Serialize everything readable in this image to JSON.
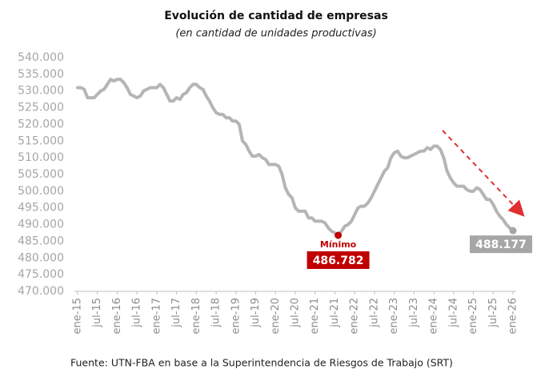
{
  "chart_data": {
    "type": "line",
    "title": "Evolución de cantidad de empresas",
    "subtitle": "(en cantidad de unidades productivas)",
    "source": "Fuente: UTN-FBA en base a la Superintendencia de Riesgos de Trabajo (SRT)",
    "annotation": "Mínimo",
    "color": "#b5b5b5",
    "highlight_color": "#c00000",
    "categories": [
      "ene-15",
      null,
      null,
      null,
      null,
      null,
      "jul-15",
      null,
      null,
      null,
      null,
      null,
      "ene-16",
      null,
      null,
      null,
      null,
      null,
      "jul-16",
      null,
      null,
      null,
      null,
      null,
      "ene-17",
      null,
      null,
      null,
      null,
      null,
      "jul-17",
      null,
      null,
      null,
      null,
      null,
      "ene-18",
      null,
      null,
      null,
      null,
      null,
      "jul-18",
      null,
      null,
      null,
      null,
      null,
      "ene-19",
      null,
      null,
      null,
      null,
      null,
      "jul-19",
      null,
      null,
      null,
      null,
      null,
      "ene-20",
      null,
      null,
      null,
      null,
      null,
      "jul-20",
      null,
      null,
      null,
      null,
      null,
      "ene-21",
      null,
      null,
      null,
      null,
      null,
      "jul-21",
      null,
      null,
      null,
      null,
      null,
      "ene-22",
      null,
      null,
      null,
      null,
      null,
      "jul-22",
      null,
      null,
      null,
      null,
      null,
      "ene-23",
      null,
      null,
      null,
      null,
      null,
      "jul-23",
      null,
      null,
      null,
      null,
      null,
      "ene-24",
      null,
      null,
      null,
      null,
      null,
      "jul-24",
      null,
      null,
      null,
      null,
      null,
      "ene-25",
      null,
      null,
      null,
      null,
      null,
      "jul-25",
      null,
      null,
      null,
      null,
      null,
      "ene-26"
    ],
    "values": [
      531000,
      531000,
      530500,
      528000,
      528000,
      528000,
      529000,
      530000,
      530500,
      532000,
      533500,
      533000,
      533500,
      533500,
      532500,
      531000,
      529000,
      528500,
      528000,
      528500,
      530000,
      530500,
      531000,
      531000,
      531000,
      532000,
      531000,
      529000,
      527000,
      527000,
      528000,
      527500,
      529000,
      529500,
      531000,
      532000,
      532000,
      531000,
      530500,
      528500,
      527000,
      525000,
      523500,
      523000,
      523000,
      522000,
      522000,
      521000,
      521000,
      520000,
      515000,
      514000,
      512000,
      510500,
      510500,
      511000,
      510000,
      509500,
      508000,
      508000,
      508000,
      507500,
      505000,
      501000,
      499000,
      498000,
      495000,
      494000,
      494000,
      494000,
      492000,
      492000,
      491000,
      491000,
      491000,
      490500,
      489000,
      488000,
      487500,
      486782,
      488000,
      489500,
      490000,
      491000,
      493000,
      495000,
      495500,
      495500,
      496500,
      498000,
      500000,
      502000,
      504000,
      506000,
      507000,
      510000,
      511500,
      512000,
      510500,
      510000,
      510000,
      510500,
      511000,
      511500,
      512000,
      512000,
      513000,
      512500,
      513500,
      513500,
      512500,
      510000,
      506000,
      504000,
      502500,
      501500,
      501500,
      501500,
      500500,
      500000,
      500000,
      501000,
      500500,
      499000,
      497500,
      497500,
      496000,
      494000,
      492500,
      491500,
      490000,
      489000,
      488177
    ],
    "value_labels": [
      null,
      null,
      null,
      null,
      null,
      null,
      null,
      null,
      null,
      null,
      null,
      null,
      null,
      null,
      null,
      null,
      null,
      null,
      null,
      null,
      null,
      null,
      null,
      null,
      null,
      null,
      null,
      null,
      null,
      null,
      null,
      null,
      null,
      null,
      null,
      null,
      null,
      null,
      null,
      null,
      null,
      null,
      null,
      null,
      null,
      null,
      null,
      null,
      null,
      null,
      null,
      null,
      null,
      null,
      null,
      null,
      null,
      null,
      null,
      null,
      null,
      null,
      null,
      null,
      null,
      null,
      null,
      null,
      null,
      null,
      null,
      null,
      null,
      null,
      null,
      null,
      null,
      null,
      null,
      "486.782",
      null,
      null,
      null,
      null,
      null,
      null,
      null,
      null,
      null,
      null,
      null,
      null,
      null,
      null,
      null,
      null,
      null,
      null,
      null,
      null,
      null,
      null,
      null,
      null,
      null,
      null,
      null,
      null,
      null,
      null,
      null,
      null,
      null,
      null,
      null,
      null,
      null,
      null,
      null,
      null,
      null,
      null,
      null,
      null,
      null,
      null,
      null,
      null,
      null,
      null,
      null,
      null,
      "488.177"
    ],
    "ylim": [
      470000,
      540000
    ],
    "yticks": [
      {
        "value": 470000,
        "label": "470.000"
      },
      {
        "value": 475000,
        "label": "475.000"
      },
      {
        "value": 480000,
        "label": "480.000"
      },
      {
        "value": 485000,
        "label": "485.000"
      },
      {
        "value": 490000,
        "label": "490.000"
      },
      {
        "value": 495000,
        "label": "495.000"
      },
      {
        "value": 500000,
        "label": "500.000"
      },
      {
        "value": 505000,
        "label": "505.000"
      },
      {
        "value": 510000,
        "label": "510.000"
      },
      {
        "value": 515000,
        "label": "515.000"
      },
      {
        "value": 520000,
        "label": "520.000"
      },
      {
        "value": 525000,
        "label": "525.000"
      },
      {
        "value": 530000,
        "label": "530.000"
      },
      {
        "value": 535000,
        "label": "535.000"
      },
      {
        "value": 540000,
        "label": "540.000"
      }
    ]
  }
}
